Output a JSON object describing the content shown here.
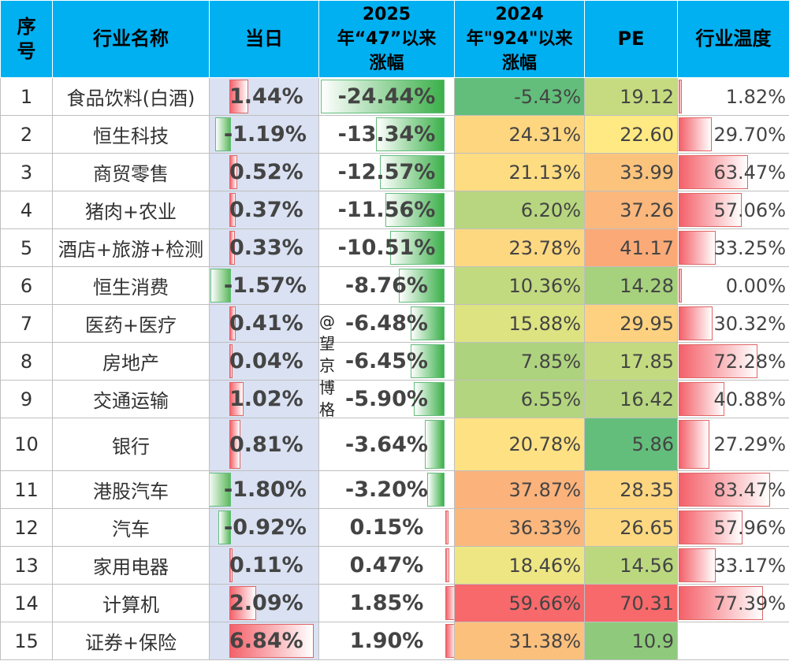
{
  "headers": {
    "seq": "序号",
    "name": "行业名称",
    "daily": "当日",
    "since47": "2025年“47”以来 涨幅",
    "since924": "2024年\"924\"以来涨幅",
    "pe": "PE",
    "temp": "行业温度"
  },
  "watermark": "@望京博格",
  "chart_data": {
    "type": "table",
    "columns": [
      "序号",
      "行业名称",
      "当日",
      "2025年“47”以来 涨幅",
      "2024年\"924\"以来涨幅",
      "PE",
      "行业温度"
    ],
    "rows": [
      {
        "seq": "1",
        "name": "食品饮料(白酒)",
        "daily": "1.44%",
        "since47": "-24.44%",
        "since924": "-5.43%",
        "pe": "19.12",
        "temp": "1.82%"
      },
      {
        "seq": "2",
        "name": "恒生科技",
        "daily": "-1.19%",
        "since47": "-13.34%",
        "since924": "24.31%",
        "pe": "22.60",
        "temp": "29.70%"
      },
      {
        "seq": "3",
        "name": "商贸零售",
        "daily": "0.52%",
        "since47": "-12.57%",
        "since924": "21.13%",
        "pe": "33.99",
        "temp": "63.47%"
      },
      {
        "seq": "4",
        "name": "猪肉+农业",
        "daily": "0.37%",
        "since47": "-11.56%",
        "since924": "6.20%",
        "pe": "37.26",
        "temp": "57.06%"
      },
      {
        "seq": "5",
        "name": "酒店+旅游+检测",
        "daily": "0.33%",
        "since47": "-10.51%",
        "since924": "23.78%",
        "pe": "41.17",
        "temp": "33.25%"
      },
      {
        "seq": "6",
        "name": "恒生消费",
        "daily": "-1.57%",
        "since47": "-8.76%",
        "since924": "10.36%",
        "pe": "14.28",
        "temp": "0.00%"
      },
      {
        "seq": "7",
        "name": "医药+医疗",
        "daily": "0.41%",
        "since47": "-6.48%",
        "since924": "15.88%",
        "pe": "29.95",
        "temp": "30.32%"
      },
      {
        "seq": "8",
        "name": "房地产",
        "daily": "0.04%",
        "since47": "-6.45%",
        "since924": "7.85%",
        "pe": "17.85",
        "temp": "72.28%"
      },
      {
        "seq": "9",
        "name": "交通运输",
        "daily": "1.02%",
        "since47": "-5.90%",
        "since924": "6.55%",
        "pe": "16.42",
        "temp": "40.88%"
      },
      {
        "seq": "10",
        "name": "银行",
        "daily": "0.81%",
        "since47": "-3.64%",
        "since924": "20.78%",
        "pe": "5.86",
        "temp": "27.29%"
      },
      {
        "seq": "11",
        "name": "港股汽车",
        "daily": "-1.80%",
        "since47": "-3.20%",
        "since924": "37.87%",
        "pe": "28.35",
        "temp": "83.47%"
      },
      {
        "seq": "12",
        "name": "汽车",
        "daily": "-0.92%",
        "since47": "0.15%",
        "since924": "36.33%",
        "pe": "26.65",
        "temp": "57.96%"
      },
      {
        "seq": "13",
        "name": "家用电器",
        "daily": "0.11%",
        "since47": "0.47%",
        "since924": "18.46%",
        "pe": "14.56",
        "temp": "33.17%"
      },
      {
        "seq": "14",
        "name": "计算机",
        "daily": "2.09%",
        "since47": "1.85%",
        "since924": "59.66%",
        "pe": "70.31",
        "temp": "77.39%"
      },
      {
        "seq": "15",
        "name": "证券+保险",
        "daily": "6.84%",
        "since47": "1.90%",
        "since924": "31.38%",
        "pe": "10.9",
        "temp": ""
      }
    ],
    "bar_scales": {
      "daily_max_abs": 6.84,
      "since47_max_abs": 24.44,
      "temp_max": 100
    }
  }
}
